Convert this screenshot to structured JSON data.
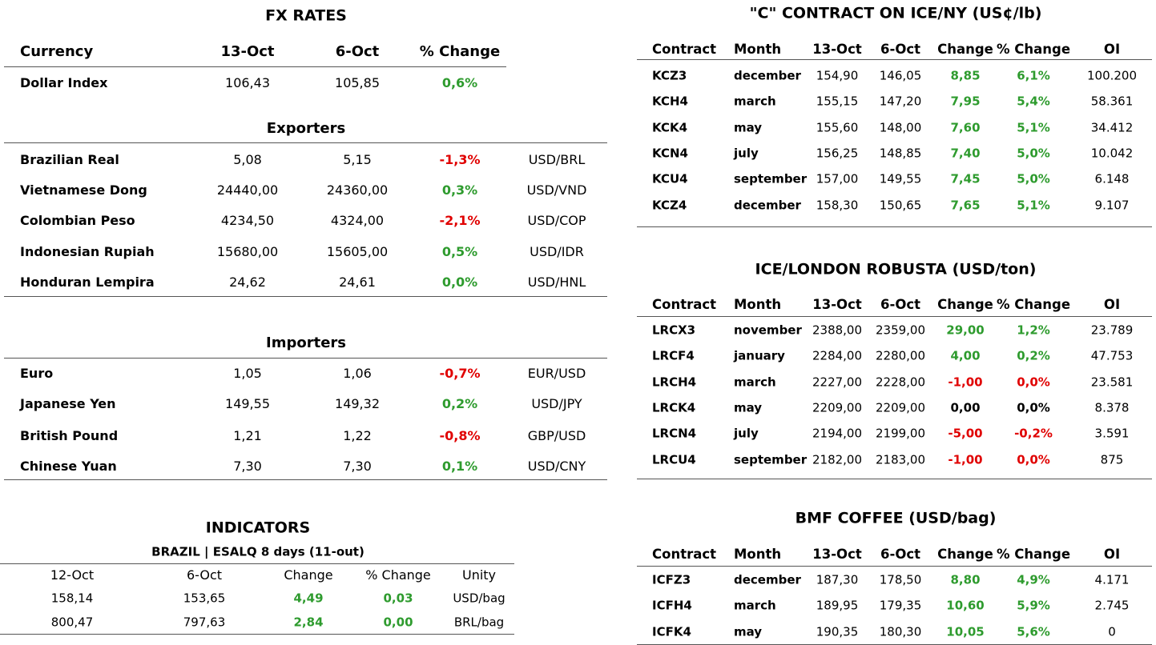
{
  "fx": {
    "title": "FX RATES",
    "header": [
      "Currency",
      "13-Oct",
      "6-Oct",
      "% Change"
    ],
    "dollar_index": {
      "cells": [
        "Dollar Index",
        "106,43",
        "105,85",
        "0,6%"
      ],
      "color": "#2e9b2e"
    },
    "exporters": {
      "title": "Exporters",
      "rows": [
        {
          "cells": [
            "Brazilian Real",
            "5,08",
            "5,15",
            "-1,3%",
            "USD/BRL"
          ],
          "color": "#e00000"
        },
        {
          "cells": [
            "Vietnamese Dong",
            "24440,00",
            "24360,00",
            "0,3%",
            "USD/VND"
          ],
          "color": "#2e9b2e"
        },
        {
          "cells": [
            "Colombian Peso",
            "4234,50",
            "4324,00",
            "-2,1%",
            "USD/COP"
          ],
          "color": "#e00000"
        },
        {
          "cells": [
            "Indonesian Rupiah",
            "15680,00",
            "15605,00",
            "0,5%",
            "USD/IDR"
          ],
          "color": "#2e9b2e"
        },
        {
          "cells": [
            "Honduran Lempira",
            "24,62",
            "24,61",
            "0,0%",
            "USD/HNL"
          ],
          "color": "#2e9b2e"
        }
      ]
    },
    "importers": {
      "title": "Importers",
      "rows": [
        {
          "cells": [
            "Euro",
            "1,05",
            "1,06",
            "-0,7%",
            "EUR/USD"
          ],
          "color": "#e00000"
        },
        {
          "cells": [
            "Japanese Yen",
            "149,55",
            "149,32",
            "0,2%",
            "USD/JPY"
          ],
          "color": "#2e9b2e"
        },
        {
          "cells": [
            "British Pound",
            "1,21",
            "1,22",
            "-0,8%",
            "GBP/USD"
          ],
          "color": "#e00000"
        },
        {
          "cells": [
            "Chinese Yuan",
            "7,30",
            "7,30",
            "0,1%",
            "USD/CNY"
          ],
          "color": "#2e9b2e"
        }
      ]
    }
  },
  "indicators": {
    "title": "INDICATORS",
    "subtitle": "BRAZIL | ESALQ 8 days (11-out)",
    "header": [
      "12-Oct",
      "6-Oct",
      "Change",
      "% Change",
      "Unity"
    ],
    "rows": [
      {
        "cells": [
          "158,14",
          "153,65",
          "4,49",
          "0,03",
          "USD/bag"
        ],
        "color": "#2e9b2e"
      },
      {
        "cells": [
          "800,47",
          "797,63",
          "2,84",
          "0,00",
          "BRL/bag"
        ],
        "color": "#2e9b2e"
      }
    ]
  },
  "arabica": {
    "title": "\"C\" CONTRACT ON ICE/NY (US¢/lb)",
    "header": [
      "Contract",
      "Month",
      "13-Oct",
      "6-Oct",
      "Change",
      "% Change",
      "OI"
    ],
    "rows": [
      {
        "cells": [
          "KCZ3",
          "december",
          "154,90",
          "146,05",
          "8,85",
          "6,1%",
          "100.200"
        ],
        "colors": [
          "#2e9b2e",
          "#2e9b2e"
        ]
      },
      {
        "cells": [
          "KCH4",
          "march",
          "155,15",
          "147,20",
          "7,95",
          "5,4%",
          "58.361"
        ],
        "colors": [
          "#2e9b2e",
          "#2e9b2e"
        ]
      },
      {
        "cells": [
          "KCK4",
          "may",
          "155,60",
          "148,00",
          "7,60",
          "5,1%",
          "34.412"
        ],
        "colors": [
          "#2e9b2e",
          "#2e9b2e"
        ]
      },
      {
        "cells": [
          "KCN4",
          "july",
          "156,25",
          "148,85",
          "7,40",
          "5,0%",
          "10.042"
        ],
        "colors": [
          "#2e9b2e",
          "#2e9b2e"
        ]
      },
      {
        "cells": [
          "KCU4",
          "september",
          "157,00",
          "149,55",
          "7,45",
          "5,0%",
          "6.148"
        ],
        "colors": [
          "#2e9b2e",
          "#2e9b2e"
        ]
      },
      {
        "cells": [
          "KCZ4",
          "december",
          "158,30",
          "150,65",
          "7,65",
          "5,1%",
          "9.107"
        ],
        "colors": [
          "#2e9b2e",
          "#2e9b2e"
        ]
      }
    ]
  },
  "robusta": {
    "title": "ICE/LONDON ROBUSTA (USD/ton)",
    "header": [
      "Contract",
      "Month",
      "13-Oct",
      "6-Oct",
      "Change",
      "% Change",
      "OI"
    ],
    "rows": [
      {
        "cells": [
          "LRCX3",
          "november",
          "2388,00",
          "2359,00",
          "29,00",
          "1,2%",
          "23.789"
        ],
        "colors": [
          "#2e9b2e",
          "#2e9b2e"
        ]
      },
      {
        "cells": [
          "LRCF4",
          "january",
          "2284,00",
          "2280,00",
          "4,00",
          "0,2%",
          "47.753"
        ],
        "colors": [
          "#2e9b2e",
          "#2e9b2e"
        ]
      },
      {
        "cells": [
          "LRCH4",
          "march",
          "2227,00",
          "2228,00",
          "-1,00",
          "0,0%",
          "23.581"
        ],
        "colors": [
          "#e00000",
          "#e00000"
        ]
      },
      {
        "cells": [
          "LRCK4",
          "may",
          "2209,00",
          "2209,00",
          "0,00",
          "0,0%",
          "8.378"
        ],
        "colors": [
          "#000000",
          "#000000"
        ]
      },
      {
        "cells": [
          "LRCN4",
          "july",
          "2194,00",
          "2199,00",
          "-5,00",
          "-0,2%",
          "3.591"
        ],
        "colors": [
          "#e00000",
          "#e00000"
        ]
      },
      {
        "cells": [
          "LRCU4",
          "september",
          "2182,00",
          "2183,00",
          "-1,00",
          "0,0%",
          "875"
        ],
        "colors": [
          "#e00000",
          "#e00000"
        ]
      }
    ]
  },
  "bmf": {
    "title": "BMF COFFEE (USD/bag)",
    "header": [
      "Contract",
      "Month",
      "13-Oct",
      "6-Oct",
      "Change",
      "% Change",
      "OI"
    ],
    "rows": [
      {
        "cells": [
          "ICFZ3",
          "december",
          "187,30",
          "178,50",
          "8,80",
          "4,9%",
          "4.171"
        ],
        "colors": [
          "#2e9b2e",
          "#2e9b2e"
        ]
      },
      {
        "cells": [
          "ICFH4",
          "march",
          "189,95",
          "179,35",
          "10,60",
          "5,9%",
          "2.745"
        ],
        "colors": [
          "#2e9b2e",
          "#2e9b2e"
        ]
      },
      {
        "cells": [
          "ICFK4",
          "may",
          "190,35",
          "180,30",
          "10,05",
          "5,6%",
          "0"
        ],
        "colors": [
          "#2e9b2e",
          "#2e9b2e"
        ]
      }
    ]
  }
}
